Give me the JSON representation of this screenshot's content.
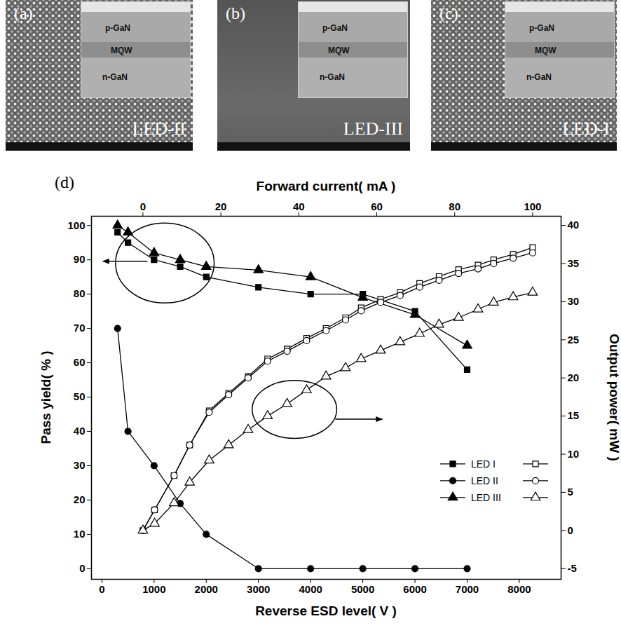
{
  "panels": [
    {
      "panel_label": "(a)",
      "name": "LED-II",
      "inset_labels": [
        "p-GaN",
        "MQW",
        "n-GaN"
      ]
    },
    {
      "panel_label": "(b)",
      "name": "LED-III",
      "inset_labels": [
        "p-GaN",
        "MQW",
        "n-GaN"
      ]
    },
    {
      "panel_label": "(c)",
      "name": "LED-I",
      "inset_labels": [
        "p-GaN",
        "MQW",
        "n-GaN"
      ]
    }
  ],
  "chart_data": {
    "type": "line",
    "panel_label": "(d)",
    "xlabel": "Reverse ESD level( V )",
    "x2label": "Forward current( mA )",
    "ylabel": "Pass yield( % )",
    "y2label": "Output power( mW )",
    "xlim": [
      -200,
      8800
    ],
    "xticks": [
      0,
      1000,
      2000,
      3000,
      4000,
      5000,
      6000,
      7000,
      8000
    ],
    "x2lim": [
      -13.2,
      107.3
    ],
    "x2ticks": [
      0,
      20,
      40,
      60,
      80,
      100
    ],
    "ylim": [
      -3.1,
      102.7
    ],
    "yticks": [
      0,
      10,
      20,
      30,
      40,
      50,
      60,
      70,
      80,
      90,
      100
    ],
    "y2lim": [
      -6.4,
      41.2
    ],
    "y2ticks": [
      -5,
      0,
      5,
      10,
      15,
      20,
      25,
      30,
      35,
      40
    ],
    "grid": false,
    "legend": "bottom-right",
    "series": [
      {
        "name": "LED I",
        "marker": "square",
        "color": "#000000",
        "x": [
          300,
          500,
          1000,
          1500,
          2000,
          3000,
          4000,
          5000,
          6000,
          7000
        ],
        "values": [
          98,
          95,
          90,
          88,
          85,
          82,
          80,
          80,
          75,
          58
        ]
      },
      {
        "name": "LED II",
        "marker": "circle",
        "color": "#000000",
        "x": [
          300,
          500,
          1000,
          1500,
          2000,
          3000,
          4000,
          5000,
          6000,
          7000
        ],
        "values": [
          70,
          40,
          30,
          19,
          10,
          0,
          0,
          0,
          0,
          0
        ]
      },
      {
        "name": "LED III",
        "marker": "triangle",
        "color": "#000000",
        "x": [
          300,
          500,
          1000,
          1500,
          2000,
          3000,
          4000,
          5000,
          6000,
          7000
        ],
        "values": [
          100,
          98,
          92,
          90,
          88,
          87,
          85,
          79,
          74,
          65
        ]
      },
      {
        "name": "LED I",
        "marker": "open-square",
        "color": "#000000",
        "axis": "y2",
        "x": [
          0,
          3,
          8,
          12,
          17,
          22,
          27,
          32,
          37,
          42,
          47,
          52,
          56,
          61,
          66,
          71,
          76,
          81,
          86,
          90,
          95,
          100
        ],
        "values": [
          0,
          2.7,
          7.2,
          11.2,
          15.7,
          18.0,
          20.2,
          22.5,
          23.8,
          25.2,
          26.5,
          27.9,
          29.2,
          30.3,
          31.2,
          32.4,
          33.3,
          34.2,
          34.8,
          35.5,
          36.2,
          37.1
        ]
      },
      {
        "name": "LED II",
        "marker": "open-circle",
        "color": "#000000",
        "axis": "y2",
        "x": [
          0,
          3,
          8,
          12,
          17,
          22,
          27,
          32,
          37,
          42,
          47,
          52,
          56,
          61,
          66,
          71,
          76,
          81,
          86,
          90,
          95,
          100
        ],
        "values": [
          0,
          2.7,
          7.2,
          11.2,
          15.5,
          17.8,
          20.0,
          22.2,
          23.5,
          24.9,
          26.2,
          27.6,
          28.8,
          29.9,
          30.8,
          31.9,
          32.8,
          33.7,
          34.3,
          35.0,
          35.7,
          36.4
        ]
      },
      {
        "name": "LED III",
        "marker": "open-triangle",
        "color": "#000000",
        "axis": "y2",
        "x": [
          0,
          3,
          8,
          12,
          17,
          22,
          27,
          32,
          37,
          42,
          47,
          52,
          56,
          61,
          66,
          71,
          76,
          81,
          86,
          90,
          95,
          100
        ],
        "values": [
          0,
          0.9,
          3.6,
          6.3,
          9.2,
          11.2,
          13.2,
          15.0,
          16.6,
          18.4,
          20.2,
          21.3,
          22.5,
          23.6,
          24.7,
          25.8,
          27.0,
          27.9,
          29.0,
          29.9,
          30.6,
          31.2
        ]
      }
    ]
  }
}
